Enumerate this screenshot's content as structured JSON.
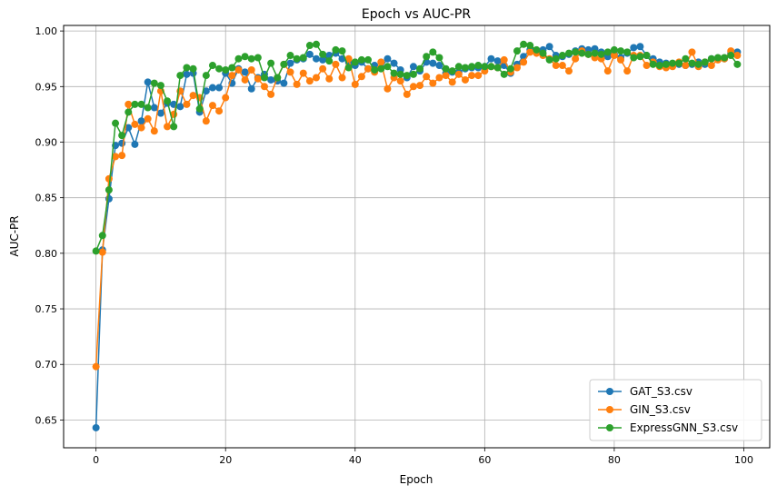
{
  "chart_data": {
    "type": "line",
    "title": "Epoch vs AUC-PR",
    "xlabel": "Epoch",
    "ylabel": "AUC-PR",
    "xlim": [
      -5,
      104
    ],
    "ylim": [
      0.625,
      1.005
    ],
    "xticks": [
      0,
      20,
      40,
      60,
      80,
      100
    ],
    "yticks": [
      0.65,
      0.7,
      0.75,
      0.8,
      0.85,
      0.9,
      0.95,
      1.0
    ],
    "ytick_labels": [
      "0.65",
      "0.70",
      "0.75",
      "0.80",
      "0.85",
      "0.90",
      "0.95",
      "1.00"
    ],
    "grid": true,
    "legend_position": "lower-right",
    "series": [
      {
        "name": "GAT_S3.csv",
        "color": "#1f77b4",
        "values": [
          0.643,
          0.803,
          0.849,
          0.897,
          0.899,
          0.913,
          0.898,
          0.919,
          0.954,
          0.931,
          0.926,
          0.935,
          0.934,
          0.932,
          0.961,
          0.962,
          0.927,
          0.946,
          0.949,
          0.949,
          0.962,
          0.953,
          0.966,
          0.963,
          0.948,
          0.958,
          0.961,
          0.956,
          0.955,
          0.953,
          0.971,
          0.974,
          0.975,
          0.979,
          0.975,
          0.974,
          0.978,
          0.98,
          0.975,
          0.972,
          0.969,
          0.972,
          0.966,
          0.969,
          0.967,
          0.975,
          0.971,
          0.965,
          0.958,
          0.968,
          0.964,
          0.972,
          0.971,
          0.969,
          0.962,
          0.963,
          0.963,
          0.966,
          0.967,
          0.967,
          0.968,
          0.975,
          0.973,
          0.969,
          0.962,
          0.97,
          0.977,
          0.983,
          0.981,
          0.983,
          0.986,
          0.978,
          0.977,
          0.979,
          0.982,
          0.984,
          0.983,
          0.984,
          0.981,
          0.977,
          0.979,
          0.976,
          0.98,
          0.985,
          0.986,
          0.978,
          0.975,
          0.972,
          0.971,
          0.97,
          0.97,
          0.969,
          0.97,
          0.972,
          0.97,
          0.975,
          0.975,
          0.975,
          0.98,
          0.981
        ]
      },
      {
        "name": "GIN_S3.csv",
        "color": "#ff7f0e",
        "values": [
          0.698,
          0.801,
          0.867,
          0.887,
          0.888,
          0.934,
          0.916,
          0.913,
          0.921,
          0.91,
          0.946,
          0.914,
          0.925,
          0.946,
          0.934,
          0.942,
          0.94,
          0.919,
          0.933,
          0.928,
          0.94,
          0.96,
          0.965,
          0.956,
          0.965,
          0.957,
          0.95,
          0.943,
          0.958,
          0.97,
          0.963,
          0.952,
          0.962,
          0.955,
          0.958,
          0.966,
          0.957,
          0.97,
          0.958,
          0.975,
          0.952,
          0.959,
          0.966,
          0.963,
          0.972,
          0.948,
          0.958,
          0.955,
          0.943,
          0.95,
          0.951,
          0.959,
          0.953,
          0.958,
          0.96,
          0.954,
          0.961,
          0.956,
          0.96,
          0.96,
          0.964,
          0.968,
          0.967,
          0.974,
          0.963,
          0.967,
          0.972,
          0.981,
          0.98,
          0.978,
          0.975,
          0.969,
          0.969,
          0.964,
          0.975,
          0.982,
          0.979,
          0.976,
          0.975,
          0.964,
          0.978,
          0.974,
          0.964,
          0.978,
          0.978,
          0.969,
          0.972,
          0.968,
          0.967,
          0.968,
          0.972,
          0.969,
          0.981,
          0.968,
          0.972,
          0.969,
          0.974,
          0.975,
          0.982,
          0.978
        ]
      },
      {
        "name": "ExpressGNN_S3.csv",
        "color": "#2ca02c",
        "values": [
          0.802,
          0.816,
          0.857,
          0.917,
          0.906,
          0.927,
          0.934,
          0.934,
          0.931,
          0.953,
          0.951,
          0.937,
          0.914,
          0.96,
          0.967,
          0.966,
          0.93,
          0.96,
          0.969,
          0.966,
          0.965,
          0.967,
          0.975,
          0.977,
          0.975,
          0.976,
          0.958,
          0.971,
          0.958,
          0.97,
          0.978,
          0.975,
          0.976,
          0.987,
          0.988,
          0.979,
          0.973,
          0.983,
          0.982,
          0.967,
          0.972,
          0.974,
          0.974,
          0.965,
          0.966,
          0.968,
          0.962,
          0.961,
          0.96,
          0.961,
          0.966,
          0.977,
          0.981,
          0.976,
          0.966,
          0.964,
          0.968,
          0.967,
          0.968,
          0.969,
          0.968,
          0.968,
          0.967,
          0.961,
          0.966,
          0.982,
          0.988,
          0.987,
          0.983,
          0.98,
          0.974,
          0.975,
          0.978,
          0.98,
          0.981,
          0.98,
          0.979,
          0.98,
          0.979,
          0.981,
          0.983,
          0.982,
          0.981,
          0.976,
          0.977,
          0.978,
          0.97,
          0.969,
          0.97,
          0.971,
          0.971,
          0.975,
          0.971,
          0.97,
          0.972,
          0.975,
          0.976,
          0.976,
          0.978,
          0.97
        ]
      }
    ]
  }
}
